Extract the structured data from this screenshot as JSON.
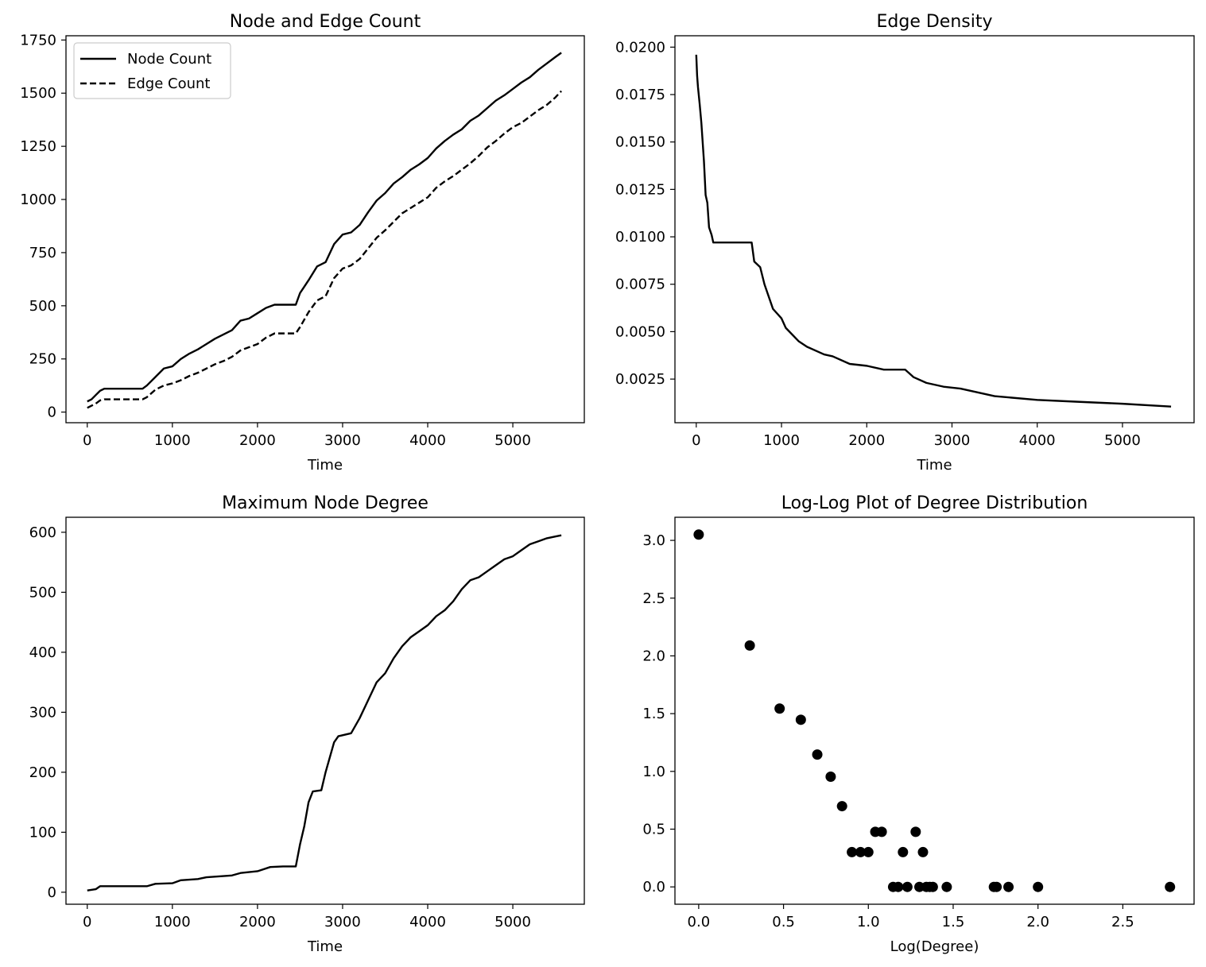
{
  "chart_data": [
    {
      "type": "line",
      "title": "Node and Edge Count",
      "xlabel": "Time",
      "ylabel": "",
      "xlim": [
        -250,
        5840
      ],
      "ylim": [
        -50,
        1770
      ],
      "xticks": [
        0,
        1000,
        2000,
        3000,
        4000,
        5000
      ],
      "yticks": [
        0,
        250,
        500,
        750,
        1000,
        1250,
        1500,
        1750
      ],
      "legend": "top-left",
      "grid": false,
      "series": [
        {
          "name": "Node Count",
          "style": "solid",
          "color": "#000000",
          "points": [
            [
              0,
              50
            ],
            [
              50,
              60
            ],
            [
              100,
              80
            ],
            [
              150,
              100
            ],
            [
              200,
              110
            ],
            [
              300,
              110
            ],
            [
              450,
              110
            ],
            [
              650,
              110
            ],
            [
              700,
              125
            ],
            [
              800,
              165
            ],
            [
              900,
              205
            ],
            [
              1000,
              215
            ],
            [
              1100,
              250
            ],
            [
              1200,
              275
            ],
            [
              1300,
              295
            ],
            [
              1400,
              320
            ],
            [
              1500,
              345
            ],
            [
              1600,
              365
            ],
            [
              1700,
              385
            ],
            [
              1800,
              430
            ],
            [
              1900,
              440
            ],
            [
              2000,
              465
            ],
            [
              2100,
              490
            ],
            [
              2200,
              505
            ],
            [
              2300,
              505
            ],
            [
              2450,
              505
            ],
            [
              2500,
              560
            ],
            [
              2600,
              620
            ],
            [
              2700,
              685
            ],
            [
              2800,
              705
            ],
            [
              2900,
              790
            ],
            [
              3000,
              835
            ],
            [
              3100,
              845
            ],
            [
              3200,
              880
            ],
            [
              3300,
              940
            ],
            [
              3400,
              995
            ],
            [
              3500,
              1030
            ],
            [
              3600,
              1075
            ],
            [
              3700,
              1105
            ],
            [
              3800,
              1140
            ],
            [
              3900,
              1165
            ],
            [
              4000,
              1195
            ],
            [
              4100,
              1240
            ],
            [
              4200,
              1275
            ],
            [
              4300,
              1305
            ],
            [
              4400,
              1330
            ],
            [
              4500,
              1370
            ],
            [
              4600,
              1395
            ],
            [
              4700,
              1430
            ],
            [
              4800,
              1465
            ],
            [
              4900,
              1490
            ],
            [
              5000,
              1520
            ],
            [
              5100,
              1550
            ],
            [
              5200,
              1575
            ],
            [
              5300,
              1610
            ],
            [
              5400,
              1640
            ],
            [
              5500,
              1670
            ],
            [
              5570,
              1690
            ]
          ]
        },
        {
          "name": "Edge Count",
          "style": "dashed",
          "color": "#000000",
          "points": [
            [
              0,
              20
            ],
            [
              100,
              40
            ],
            [
              150,
              55
            ],
            [
              200,
              60
            ],
            [
              300,
              60
            ],
            [
              450,
              60
            ],
            [
              650,
              60
            ],
            [
              700,
              70
            ],
            [
              800,
              105
            ],
            [
              900,
              125
            ],
            [
              1000,
              135
            ],
            [
              1100,
              150
            ],
            [
              1200,
              170
            ],
            [
              1300,
              185
            ],
            [
              1400,
              205
            ],
            [
              1500,
              225
            ],
            [
              1600,
              240
            ],
            [
              1700,
              260
            ],
            [
              1800,
              290
            ],
            [
              1900,
              305
            ],
            [
              2000,
              320
            ],
            [
              2100,
              350
            ],
            [
              2200,
              370
            ],
            [
              2300,
              370
            ],
            [
              2450,
              370
            ],
            [
              2500,
              400
            ],
            [
              2600,
              470
            ],
            [
              2700,
              525
            ],
            [
              2800,
              545
            ],
            [
              2900,
              630
            ],
            [
              3000,
              675
            ],
            [
              3100,
              690
            ],
            [
              3200,
              720
            ],
            [
              3300,
              770
            ],
            [
              3400,
              820
            ],
            [
              3500,
              855
            ],
            [
              3600,
              895
            ],
            [
              3700,
              935
            ],
            [
              3800,
              960
            ],
            [
              3900,
              985
            ],
            [
              4000,
              1010
            ],
            [
              4100,
              1055
            ],
            [
              4200,
              1085
            ],
            [
              4300,
              1110
            ],
            [
              4400,
              1140
            ],
            [
              4500,
              1170
            ],
            [
              4600,
              1205
            ],
            [
              4700,
              1245
            ],
            [
              4800,
              1275
            ],
            [
              4900,
              1310
            ],
            [
              5000,
              1340
            ],
            [
              5100,
              1360
            ],
            [
              5200,
              1390
            ],
            [
              5300,
              1420
            ],
            [
              5400,
              1445
            ],
            [
              5500,
              1480
            ],
            [
              5570,
              1510
            ]
          ]
        }
      ]
    },
    {
      "type": "line",
      "title": "Edge Density",
      "xlabel": "Time",
      "ylabel": "",
      "xlim": [
        -250,
        5840
      ],
      "ylim": [
        0.0002,
        0.0206
      ],
      "xticks": [
        0,
        1000,
        2000,
        3000,
        4000,
        5000
      ],
      "yticks": [
        0.0025,
        0.005,
        0.0075,
        0.01,
        0.0125,
        0.015,
        0.0175,
        0.02
      ],
      "ytick_labels": [
        "0.0025",
        "0.0050",
        "0.0075",
        "0.0100",
        "0.0125",
        "0.0150",
        "0.0175",
        "0.0200"
      ],
      "grid": false,
      "series": [
        {
          "color": "#000000",
          "style": "solid",
          "points": [
            [
              0,
              0.0196
            ],
            [
              10,
              0.0185
            ],
            [
              20,
              0.0179
            ],
            [
              40,
              0.017
            ],
            [
              60,
              0.016
            ],
            [
              90,
              0.014
            ],
            [
              110,
              0.0122
            ],
            [
              130,
              0.0118
            ],
            [
              150,
              0.0105
            ],
            [
              180,
              0.0101
            ],
            [
              200,
              0.0097
            ],
            [
              300,
              0.0097
            ],
            [
              500,
              0.0097
            ],
            [
              650,
              0.0097
            ],
            [
              680,
              0.0087
            ],
            [
              750,
              0.0084
            ],
            [
              800,
              0.0075
            ],
            [
              900,
              0.0062
            ],
            [
              1000,
              0.0057
            ],
            [
              1050,
              0.0052
            ],
            [
              1200,
              0.0045
            ],
            [
              1300,
              0.0042
            ],
            [
              1500,
              0.0038
            ],
            [
              1600,
              0.0037
            ],
            [
              1800,
              0.0033
            ],
            [
              2000,
              0.0032
            ],
            [
              2200,
              0.003
            ],
            [
              2450,
              0.003
            ],
            [
              2550,
              0.0026
            ],
            [
              2700,
              0.0023
            ],
            [
              2900,
              0.0021
            ],
            [
              3100,
              0.002
            ],
            [
              3300,
              0.0018
            ],
            [
              3500,
              0.0016
            ],
            [
              4000,
              0.0014
            ],
            [
              4500,
              0.0013
            ],
            [
              5000,
              0.0012
            ],
            [
              5570,
              0.00105
            ]
          ]
        }
      ]
    },
    {
      "type": "line",
      "title": "Maximum Node Degree",
      "xlabel": "Time",
      "ylabel": "",
      "xlim": [
        -250,
        5840
      ],
      "ylim": [
        -20,
        625
      ],
      "xticks": [
        0,
        1000,
        2000,
        3000,
        4000,
        5000
      ],
      "yticks": [
        0,
        100,
        200,
        300,
        400,
        500,
        600
      ],
      "grid": false,
      "series": [
        {
          "color": "#000000",
          "style": "solid",
          "points": [
            [
              0,
              3
            ],
            [
              100,
              5
            ],
            [
              150,
              10
            ],
            [
              300,
              10
            ],
            [
              500,
              10
            ],
            [
              700,
              10
            ],
            [
              800,
              14
            ],
            [
              1000,
              15
            ],
            [
              1100,
              20
            ],
            [
              1300,
              22
            ],
            [
              1400,
              25
            ],
            [
              1700,
              28
            ],
            [
              1800,
              32
            ],
            [
              2000,
              35
            ],
            [
              2150,
              42
            ],
            [
              2300,
              43
            ],
            [
              2450,
              43
            ],
            [
              2500,
              80
            ],
            [
              2550,
              110
            ],
            [
              2600,
              150
            ],
            [
              2650,
              168
            ],
            [
              2750,
              170
            ],
            [
              2800,
              200
            ],
            [
              2900,
              250
            ],
            [
              2950,
              260
            ],
            [
              3100,
              265
            ],
            [
              3200,
              290
            ],
            [
              3300,
              320
            ],
            [
              3400,
              350
            ],
            [
              3500,
              365
            ],
            [
              3600,
              390
            ],
            [
              3700,
              410
            ],
            [
              3800,
              425
            ],
            [
              3900,
              435
            ],
            [
              4000,
              445
            ],
            [
              4100,
              460
            ],
            [
              4200,
              470
            ],
            [
              4300,
              485
            ],
            [
              4400,
              505
            ],
            [
              4500,
              520
            ],
            [
              4600,
              525
            ],
            [
              4700,
              535
            ],
            [
              4800,
              545
            ],
            [
              4900,
              555
            ],
            [
              5000,
              560
            ],
            [
              5100,
              570
            ],
            [
              5200,
              580
            ],
            [
              5300,
              585
            ],
            [
              5400,
              590
            ],
            [
              5500,
              593
            ],
            [
              5570,
              595
            ]
          ]
        }
      ]
    },
    {
      "type": "scatter",
      "title": "Log-Log Plot of Degree Distribution",
      "xlabel": "Log(Degree)",
      "ylabel": "",
      "xlim": [
        -0.14,
        2.92
      ],
      "ylim": [
        -0.15,
        3.2
      ],
      "xticks": [
        0.0,
        0.5,
        1.0,
        1.5,
        2.0,
        2.5
      ],
      "xtick_labels": [
        "0.0",
        "0.5",
        "1.0",
        "1.5",
        "2.0",
        "2.5"
      ],
      "yticks": [
        0.0,
        0.5,
        1.0,
        1.5,
        2.0,
        2.5,
        3.0
      ],
      "ytick_labels": [
        "0.0",
        "0.5",
        "1.0",
        "1.5",
        "2.0",
        "2.5",
        "3.0"
      ],
      "grid": false,
      "color": "#000000",
      "points": [
        [
          0.0,
          3.05
        ],
        [
          0.301,
          2.09
        ],
        [
          0.477,
          1.544
        ],
        [
          0.602,
          1.447
        ],
        [
          0.699,
          1.146
        ],
        [
          0.778,
          0.954
        ],
        [
          0.845,
          0.699
        ],
        [
          0.903,
          0.301
        ],
        [
          0.954,
          0.301
        ],
        [
          1.0,
          0.301
        ],
        [
          1.041,
          0.477
        ],
        [
          1.079,
          0.477
        ],
        [
          1.146,
          0.0
        ],
        [
          1.176,
          0.0
        ],
        [
          1.204,
          0.301
        ],
        [
          1.23,
          0.0
        ],
        [
          1.279,
          0.477
        ],
        [
          1.301,
          0.0
        ],
        [
          1.322,
          0.301
        ],
        [
          1.342,
          0.0
        ],
        [
          1.362,
          0.0
        ],
        [
          1.38,
          0.0
        ],
        [
          1.462,
          0.0
        ],
        [
          1.74,
          0.0
        ],
        [
          1.756,
          0.0
        ],
        [
          1.826,
          0.0
        ],
        [
          2.0,
          0.0
        ],
        [
          2.778,
          0.0
        ]
      ]
    }
  ]
}
